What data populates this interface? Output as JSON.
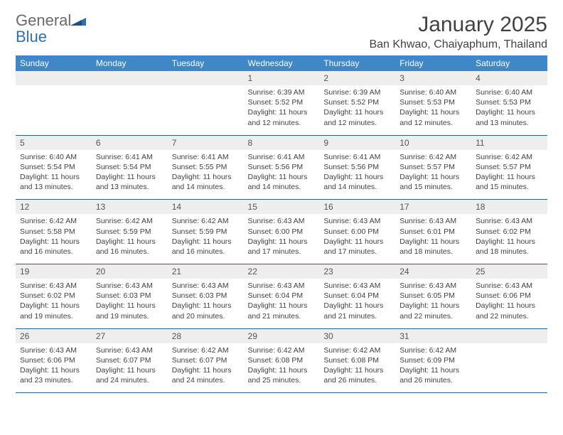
{
  "brand": {
    "part1": "General",
    "part2": "Blue"
  },
  "title": "January 2025",
  "location": "Ban Khwao, Chaiyaphum, Thailand",
  "colors": {
    "header_bg": "#3f87c7",
    "header_text": "#ffffff",
    "daynum_bg": "#eeeeee",
    "rule": "#2a5f93",
    "text": "#424242"
  },
  "weekdays": [
    "Sunday",
    "Monday",
    "Tuesday",
    "Wednesday",
    "Thursday",
    "Friday",
    "Saturday"
  ],
  "weeks": [
    {
      "nums": [
        "",
        "",
        "",
        "1",
        "2",
        "3",
        "4"
      ],
      "cells": [
        null,
        null,
        null,
        {
          "sunrise": "6:39 AM",
          "sunset": "5:52 PM",
          "day_h": "11",
          "day_m": "12"
        },
        {
          "sunrise": "6:39 AM",
          "sunset": "5:52 PM",
          "day_h": "11",
          "day_m": "12"
        },
        {
          "sunrise": "6:40 AM",
          "sunset": "5:53 PM",
          "day_h": "11",
          "day_m": "12"
        },
        {
          "sunrise": "6:40 AM",
          "sunset": "5:53 PM",
          "day_h": "11",
          "day_m": "13"
        }
      ]
    },
    {
      "nums": [
        "5",
        "6",
        "7",
        "8",
        "9",
        "10",
        "11"
      ],
      "cells": [
        {
          "sunrise": "6:40 AM",
          "sunset": "5:54 PM",
          "day_h": "11",
          "day_m": "13"
        },
        {
          "sunrise": "6:41 AM",
          "sunset": "5:54 PM",
          "day_h": "11",
          "day_m": "13"
        },
        {
          "sunrise": "6:41 AM",
          "sunset": "5:55 PM",
          "day_h": "11",
          "day_m": "14"
        },
        {
          "sunrise": "6:41 AM",
          "sunset": "5:56 PM",
          "day_h": "11",
          "day_m": "14"
        },
        {
          "sunrise": "6:41 AM",
          "sunset": "5:56 PM",
          "day_h": "11",
          "day_m": "14"
        },
        {
          "sunrise": "6:42 AM",
          "sunset": "5:57 PM",
          "day_h": "11",
          "day_m": "15"
        },
        {
          "sunrise": "6:42 AM",
          "sunset": "5:57 PM",
          "day_h": "11",
          "day_m": "15"
        }
      ]
    },
    {
      "nums": [
        "12",
        "13",
        "14",
        "15",
        "16",
        "17",
        "18"
      ],
      "cells": [
        {
          "sunrise": "6:42 AM",
          "sunset": "5:58 PM",
          "day_h": "11",
          "day_m": "16"
        },
        {
          "sunrise": "6:42 AM",
          "sunset": "5:59 PM",
          "day_h": "11",
          "day_m": "16"
        },
        {
          "sunrise": "6:42 AM",
          "sunset": "5:59 PM",
          "day_h": "11",
          "day_m": "16"
        },
        {
          "sunrise": "6:43 AM",
          "sunset": "6:00 PM",
          "day_h": "11",
          "day_m": "17"
        },
        {
          "sunrise": "6:43 AM",
          "sunset": "6:00 PM",
          "day_h": "11",
          "day_m": "17"
        },
        {
          "sunrise": "6:43 AM",
          "sunset": "6:01 PM",
          "day_h": "11",
          "day_m": "18"
        },
        {
          "sunrise": "6:43 AM",
          "sunset": "6:02 PM",
          "day_h": "11",
          "day_m": "18"
        }
      ]
    },
    {
      "nums": [
        "19",
        "20",
        "21",
        "22",
        "23",
        "24",
        "25"
      ],
      "cells": [
        {
          "sunrise": "6:43 AM",
          "sunset": "6:02 PM",
          "day_h": "11",
          "day_m": "19"
        },
        {
          "sunrise": "6:43 AM",
          "sunset": "6:03 PM",
          "day_h": "11",
          "day_m": "19"
        },
        {
          "sunrise": "6:43 AM",
          "sunset": "6:03 PM",
          "day_h": "11",
          "day_m": "20"
        },
        {
          "sunrise": "6:43 AM",
          "sunset": "6:04 PM",
          "day_h": "11",
          "day_m": "21"
        },
        {
          "sunrise": "6:43 AM",
          "sunset": "6:04 PM",
          "day_h": "11",
          "day_m": "21"
        },
        {
          "sunrise": "6:43 AM",
          "sunset": "6:05 PM",
          "day_h": "11",
          "day_m": "22"
        },
        {
          "sunrise": "6:43 AM",
          "sunset": "6:06 PM",
          "day_h": "11",
          "day_m": "22"
        }
      ]
    },
    {
      "nums": [
        "26",
        "27",
        "28",
        "29",
        "30",
        "31",
        ""
      ],
      "cells": [
        {
          "sunrise": "6:43 AM",
          "sunset": "6:06 PM",
          "day_h": "11",
          "day_m": "23"
        },
        {
          "sunrise": "6:43 AM",
          "sunset": "6:07 PM",
          "day_h": "11",
          "day_m": "24"
        },
        {
          "sunrise": "6:42 AM",
          "sunset": "6:07 PM",
          "day_h": "11",
          "day_m": "24"
        },
        {
          "sunrise": "6:42 AM",
          "sunset": "6:08 PM",
          "day_h": "11",
          "day_m": "25"
        },
        {
          "sunrise": "6:42 AM",
          "sunset": "6:08 PM",
          "day_h": "11",
          "day_m": "26"
        },
        {
          "sunrise": "6:42 AM",
          "sunset": "6:09 PM",
          "day_h": "11",
          "day_m": "26"
        },
        null
      ]
    }
  ],
  "labels": {
    "sunrise": "Sunrise:",
    "sunset": "Sunset:",
    "daylight_prefix": "Daylight:",
    "hours_word": "hours",
    "and_word": "and",
    "minutes_word": "minutes."
  }
}
